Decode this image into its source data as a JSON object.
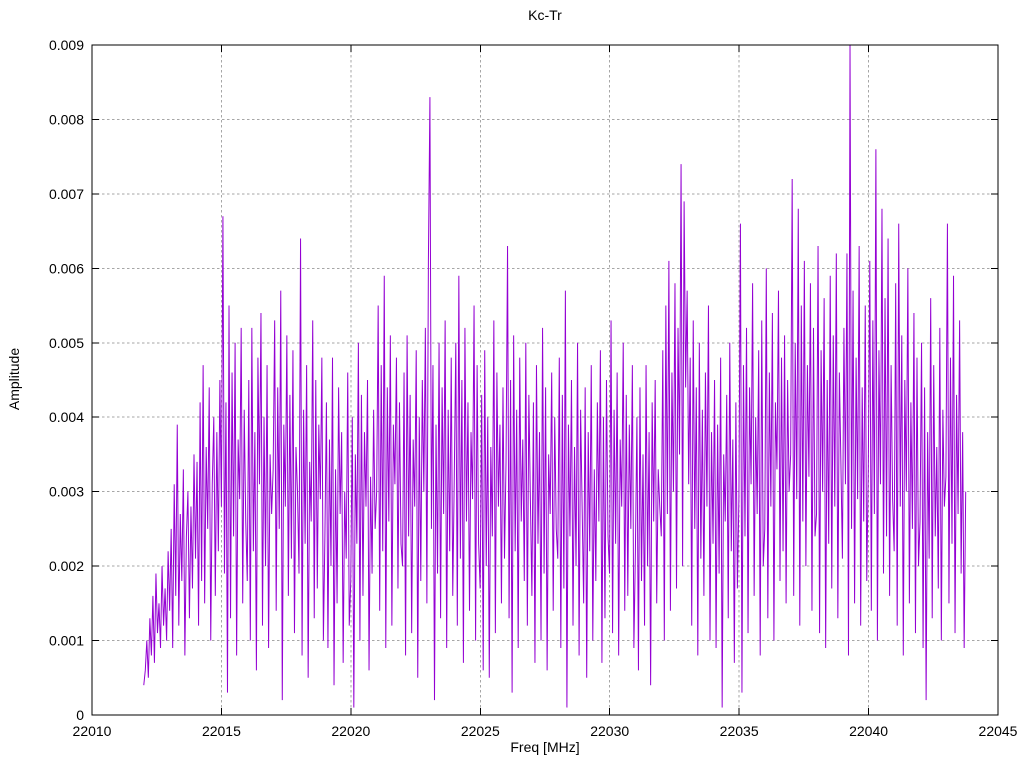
{
  "chart_data": {
    "type": "line",
    "title": "Kc-Tr",
    "xlabel": "Freq [MHz]",
    "ylabel": "Amplitude",
    "xlim": [
      22010,
      22045
    ],
    "ylim": [
      0,
      0.009
    ],
    "x_ticks": [
      22010,
      22015,
      22020,
      22025,
      22030,
      22035,
      22040,
      22045
    ],
    "x_tick_labels": [
      "22010",
      "22015",
      "22020",
      "22025",
      "22030",
      "22035",
      "22040",
      "22045"
    ],
    "y_ticks": [
      0,
      0.001,
      0.002,
      0.003,
      0.004,
      0.005,
      0.006,
      0.007,
      0.008,
      0.009
    ],
    "y_tick_labels": [
      "0",
      "0.001",
      "0.002",
      "0.003",
      "0.004",
      "0.005",
      "0.006",
      "0.007",
      "0.008",
      "0.009"
    ],
    "grid": true,
    "grid_style": "dotted",
    "legend": "none",
    "line_color": "#9400d3",
    "grid_color": "#a6a6a6",
    "axis_color": "#000000",
    "background_color": "#ffffff",
    "series": [
      {
        "name": "Kc-Tr",
        "x_start": 22012.0,
        "x_step": 0.0588,
        "value_scale": 0.0001,
        "values_scaled": [
          4,
          6,
          10,
          5,
          13,
          8,
          16,
          7,
          19,
          11,
          15,
          9,
          20,
          12,
          17,
          10,
          22,
          14,
          25,
          9,
          31,
          16,
          39,
          12,
          27,
          18,
          33,
          8,
          24,
          30,
          13,
          28,
          17,
          35,
          21,
          34,
          12,
          42,
          18,
          47,
          15,
          36,
          25,
          44,
          10,
          31,
          40,
          16,
          38,
          22,
          45,
          28,
          67,
          19,
          42,
          3,
          55,
          13,
          46,
          24,
          50,
          8,
          37,
          29,
          52,
          15,
          41,
          26,
          18,
          45,
          10,
          52,
          22,
          38,
          6,
          48,
          31,
          54,
          12,
          40,
          20,
          47,
          9,
          35,
          27,
          33,
          53,
          14,
          44,
          25,
          57,
          2,
          39,
          28,
          51,
          16,
          43,
          21,
          49,
          11,
          36,
          30,
          19,
          64,
          8,
          41,
          23,
          47,
          5,
          34,
          26,
          53,
          13,
          45,
          17,
          39,
          29,
          48,
          10,
          24,
          42,
          9,
          37,
          20,
          48,
          4,
          33,
          15,
          44,
          27,
          38,
          7,
          30,
          21,
          46,
          12,
          18,
          40,
          1,
          35,
          23,
          50,
          10,
          43,
          16,
          38,
          28,
          45,
          6,
          32,
          19,
          41,
          25,
          30,
          55,
          14,
          47,
          22,
          59,
          9,
          44,
          26,
          51,
          12,
          39,
          31,
          48,
          17,
          42,
          23,
          20,
          46,
          8,
          51,
          24,
          43,
          11,
          37,
          28,
          49,
          5,
          40,
          18,
          45,
          30,
          52,
          15,
          61,
          83,
          25,
          47,
          2,
          39,
          19,
          50,
          13,
          44,
          27,
          53,
          9,
          41,
          22,
          48,
          16,
          32,
          50,
          12,
          59,
          21,
          45,
          7,
          52,
          26,
          42,
          14,
          38,
          29,
          55,
          10,
          47,
          23,
          17,
          43,
          6,
          49,
          20,
          40,
          5,
          36,
          24,
          53,
          11,
          46,
          28,
          39,
          15,
          44,
          21,
          34,
          63,
          13,
          45,
          3,
          51,
          22,
          41,
          9,
          48,
          26,
          37,
          18,
          50,
          12,
          43,
          29,
          16,
          42,
          7,
          47,
          23,
          38,
          10,
          52,
          19,
          44,
          6,
          35,
          27,
          46,
          14,
          40,
          25,
          21,
          48,
          9,
          43,
          17,
          57,
          1,
          39,
          24,
          45,
          12,
          36,
          20,
          50,
          8,
          41,
          28,
          15,
          44,
          5,
          38,
          22,
          47,
          10,
          33,
          18,
          42,
          26,
          49,
          7,
          40,
          13,
          45,
          24,
          19,
          53,
          11,
          41,
          23,
          46,
          8,
          37,
          28,
          50,
          14,
          43,
          16,
          39,
          25,
          47,
          9,
          22,
          40,
          6,
          44,
          18,
          35,
          12,
          47,
          20,
          38,
          4,
          42,
          26,
          45,
          15,
          33,
          28,
          24,
          49,
          10,
          55,
          27,
          61,
          14,
          46,
          30,
          58,
          17,
          52,
          35,
          74,
          20,
          69,
          44,
          57,
          31,
          48,
          12,
          53,
          25,
          44,
          8,
          50,
          21,
          41,
          16,
          46,
          28,
          55,
          10,
          38,
          23,
          45,
          9,
          39,
          19,
          48,
          1,
          35,
          26,
          43,
          13,
          50,
          22,
          37,
          7,
          42,
          17,
          29,
          66,
          3,
          47,
          24,
          52,
          11,
          44,
          31,
          58,
          16,
          40,
          27,
          49,
          8,
          53,
          20,
          25,
          60,
          13,
          46,
          28,
          54,
          10,
          42,
          33,
          57,
          18,
          48,
          22,
          51,
          15,
          45,
          30,
          35,
          72,
          16,
          50,
          29,
          68,
          12,
          55,
          26,
          61,
          20,
          47,
          32,
          58,
          14,
          52,
          24,
          27,
          63,
          11,
          49,
          30,
          56,
          9,
          45,
          23,
          59,
          17,
          51,
          28,
          62,
          13,
          46,
          34,
          21,
          52,
          31,
          62,
          8,
          90,
          25,
          57,
          15,
          48,
          29,
          63,
          12,
          44,
          26,
          55,
          18,
          33,
          61,
          14,
          53,
          27,
          76,
          10,
          49,
          31,
          68,
          19,
          56,
          24,
          64,
          16,
          47,
          29,
          22,
          58,
          12,
          66,
          28,
          51,
          8,
          45,
          30,
          60,
          15,
          42,
          25,
          54,
          11,
          48,
          20,
          26,
          50,
          9,
          44,
          2,
          38,
          21,
          56,
          13,
          47,
          24,
          36,
          17,
          52,
          10,
          41,
          28,
          32,
          66,
          15,
          48,
          23,
          59,
          11,
          43,
          27,
          53,
          19,
          38,
          9,
          30
        ]
      }
    ]
  }
}
